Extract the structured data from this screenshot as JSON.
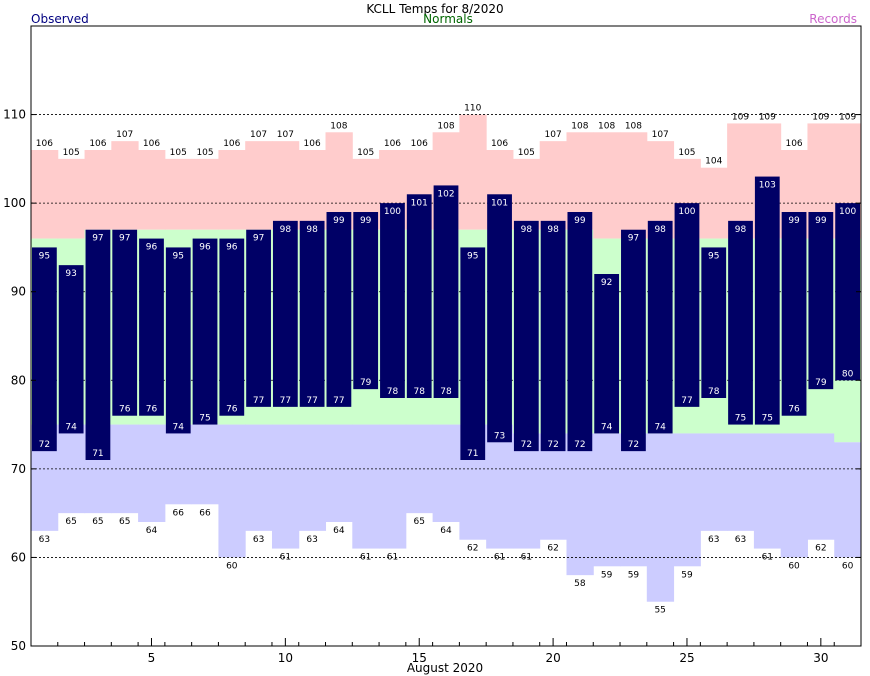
{
  "header": {
    "title": "KCLL Temps for 8/2020",
    "observed_label": "Observed",
    "normals_label": "Normals",
    "records_label": "Records"
  },
  "chart_data": {
    "type": "bar",
    "title": "KCLL Temps for 8/2020",
    "xlabel": "August 2020",
    "ylabel": "",
    "ylim": [
      50,
      120
    ],
    "yticks": [
      50,
      60,
      70,
      80,
      90,
      100,
      110
    ],
    "xticks": [
      5,
      10,
      15,
      20,
      25,
      30
    ],
    "grid": true,
    "colors": {
      "observed": "#000066",
      "normals": "#ccffcc",
      "records": "#ffcccc",
      "record_low": "#ccccff",
      "observed_label": "#000080",
      "normals_label": "#006600",
      "records_label": "#cc66cc"
    },
    "days": [
      1,
      2,
      3,
      4,
      5,
      6,
      7,
      8,
      9,
      10,
      11,
      12,
      13,
      14,
      15,
      16,
      17,
      18,
      19,
      20,
      21,
      22,
      23,
      24,
      25,
      26,
      27,
      28,
      29,
      30,
      31
    ],
    "observed_high": [
      95,
      93,
      97,
      97,
      96,
      95,
      96,
      96,
      97,
      98,
      98,
      99,
      99,
      100,
      101,
      102,
      95,
      101,
      98,
      98,
      99,
      92,
      97,
      98,
      100,
      95,
      98,
      103,
      99,
      99,
      100
    ],
    "observed_low": [
      72,
      74,
      71,
      76,
      76,
      74,
      75,
      76,
      77,
      77,
      77,
      77,
      79,
      78,
      78,
      78,
      71,
      73,
      72,
      72,
      72,
      74,
      72,
      74,
      77,
      78,
      75,
      75,
      76,
      79,
      80
    ],
    "normal_high": [
      96,
      96,
      97,
      97,
      97,
      97,
      97,
      97,
      97,
      97,
      97,
      97,
      97,
      97,
      97,
      97,
      97,
      97,
      97,
      97,
      97,
      96,
      96,
      96,
      96,
      96,
      96,
      96,
      96,
      96,
      96
    ],
    "normal_low": [
      75,
      75,
      75,
      75,
      75,
      75,
      75,
      75,
      75,
      75,
      75,
      75,
      75,
      75,
      75,
      75,
      75,
      75,
      74,
      74,
      74,
      74,
      74,
      74,
      74,
      74,
      74,
      74,
      74,
      74,
      73
    ],
    "record_high": [
      106,
      105,
      106,
      107,
      106,
      105,
      105,
      106,
      107,
      107,
      106,
      108,
      105,
      106,
      106,
      108,
      110,
      106,
      105,
      107,
      108,
      108,
      108,
      107,
      105,
      104,
      109,
      109,
      106,
      109,
      109
    ],
    "record_low": [
      63,
      65,
      65,
      65,
      64,
      66,
      66,
      60,
      63,
      61,
      63,
      64,
      61,
      61,
      65,
      64,
      62,
      61,
      61,
      62,
      58,
      59,
      59,
      55,
      59,
      63,
      63,
      61,
      60,
      62,
      60
    ]
  }
}
